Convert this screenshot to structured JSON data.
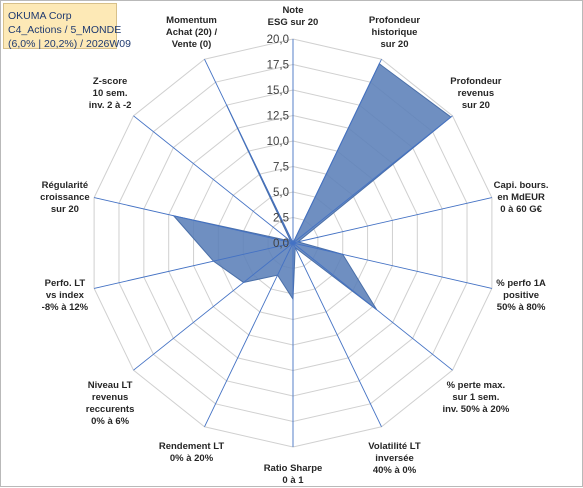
{
  "title_box": {
    "line1": "OKUMA Corp",
    "line2": "C4_Actions / 5_MONDE",
    "line3": "(6,0% | 20,2%) / 2026W09"
  },
  "colors": {
    "fill": "#5b7fb8",
    "stroke": "#4a6fa8",
    "axis": "#4472c4",
    "grid": "#d0d0d0"
  },
  "chart_data": {
    "type": "radar",
    "rlim": [
      0,
      20
    ],
    "tick_step": 2.5,
    "tick_labels": [
      "0,0",
      "2,5",
      "5,0",
      "7,5",
      "10,0",
      "12,5",
      "15,0",
      "17,5",
      "20,0"
    ],
    "grid": true,
    "axes": [
      {
        "lines": [
          "Note",
          "ESG sur 20"
        ]
      },
      {
        "lines": [
          "Profondeur",
          "historique",
          "sur 20"
        ]
      },
      {
        "lines": [
          "Profondeur",
          "revenus",
          "sur 20"
        ]
      },
      {
        "lines": [
          "Capi. bours.",
          "en MdEUR",
          "0 à 60 G€"
        ]
      },
      {
        "lines": [
          "% perfo 1A",
          "positive",
          "50% à 80%"
        ]
      },
      {
        "lines": [
          "% perte max.",
          "sur 1 sem.",
          "inv. 50% à 20%"
        ]
      },
      {
        "lines": [
          "Volatilité LT",
          "inversée",
          "40% à 0%"
        ]
      },
      {
        "lines": [
          "Ratio Sharpe",
          "0 à 1"
        ]
      },
      {
        "lines": [
          "Rendement LT",
          "0% à 20%"
        ]
      },
      {
        "lines": [
          "Niveau LT",
          "revenus",
          "reccurents",
          "0% à 6%"
        ]
      },
      {
        "lines": [
          "Perfo. LT",
          "vs index",
          "-8% à 12%"
        ]
      },
      {
        "lines": [
          "Régularité",
          "croissance",
          "sur 20"
        ]
      },
      {
        "lines": [
          "Z-score",
          "10 sem.",
          "inv. 2 à -2"
        ]
      },
      {
        "lines": [
          "Momentum",
          "Achat (20) /",
          "Vente (0)"
        ]
      }
    ],
    "series": [
      {
        "values": [
          0,
          19.5,
          19.8,
          0.5,
          5,
          10.5,
          0.5,
          5.5,
          3.5,
          6.2,
          8,
          12,
          0.3,
          15
        ]
      }
    ]
  }
}
